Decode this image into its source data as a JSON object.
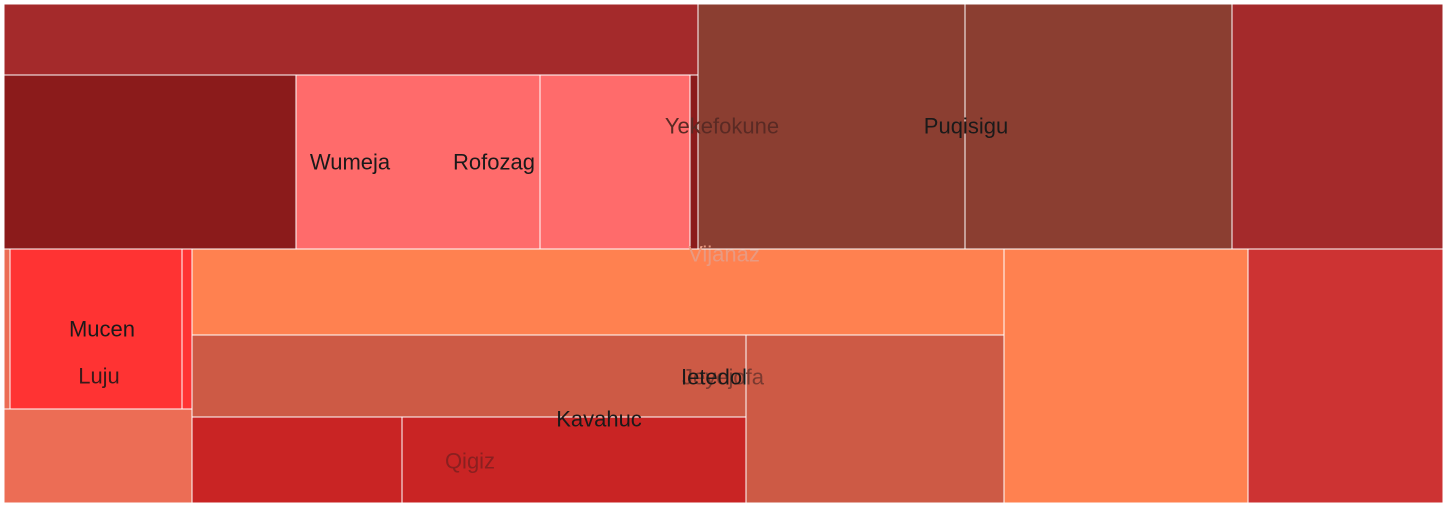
{
  "chart_data": {
    "type": "treemap",
    "title": "",
    "cells": [
      {
        "id": "c1",
        "color": "#a42a2b"
      },
      {
        "id": "c2",
        "color": "#8b1b1b"
      },
      {
        "id": "c3",
        "color": "#ff6b6b"
      },
      {
        "id": "c4",
        "color": "#ff6b6b"
      },
      {
        "id": "c5",
        "color": "#8b3e31"
      },
      {
        "id": "c6",
        "color": "#8b3e31"
      },
      {
        "id": "c7",
        "color": "#a42a2b"
      },
      {
        "id": "c8",
        "color": "#ff3333"
      },
      {
        "id": "c9",
        "color": "#ec6d55"
      },
      {
        "id": "c10",
        "color": "#ff8150"
      },
      {
        "id": "c11",
        "color": "#cd5a45"
      },
      {
        "id": "c12",
        "color": "#cd5a45"
      },
      {
        "id": "c13",
        "color": "#ff8150"
      },
      {
        "id": "c14",
        "color": "#cd3333"
      },
      {
        "id": "c15",
        "color": "#c92424"
      },
      {
        "id": "c16",
        "color": "#c92424"
      }
    ],
    "labels": [
      {
        "text": "Wumeja",
        "color": "#1a1a1a"
      },
      {
        "text": "Rofozag",
        "color": "#1a1a1a"
      },
      {
        "text": "Yekefokune",
        "color": "#5a2a24"
      },
      {
        "text": "Puqisigu",
        "color": "#1a1a1a"
      },
      {
        "text": "Vijanaz",
        "color": "#e89a82"
      },
      {
        "text": "Mucen",
        "color": "#1a1a1a"
      },
      {
        "text": "Luju",
        "color": "#3a1a1a"
      },
      {
        "text": "Jeyejofa",
        "color": "#7a3a30"
      },
      {
        "text": "Ietedol",
        "color": "#1a1a1a"
      },
      {
        "text": "Kavahuc",
        "color": "#1a1a1a"
      },
      {
        "text": "Qigiz",
        "color": "#8a2020"
      }
    ]
  }
}
